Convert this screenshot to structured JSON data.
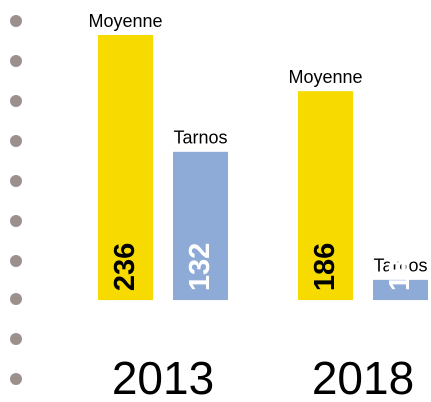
{
  "chart_data": {
    "type": "bar",
    "categories": [
      "2013",
      "2018"
    ],
    "series": [
      {
        "name": "Moyenne",
        "color": "#f7da00",
        "label_color": "#000000",
        "values": [
          236,
          186
        ]
      },
      {
        "name": "Tarnos",
        "color": "#8eaad6",
        "label_color": "#ffffff",
        "values": [
          132,
          18
        ]
      }
    ],
    "ylim": [
      -40,
      236
    ]
  }
}
